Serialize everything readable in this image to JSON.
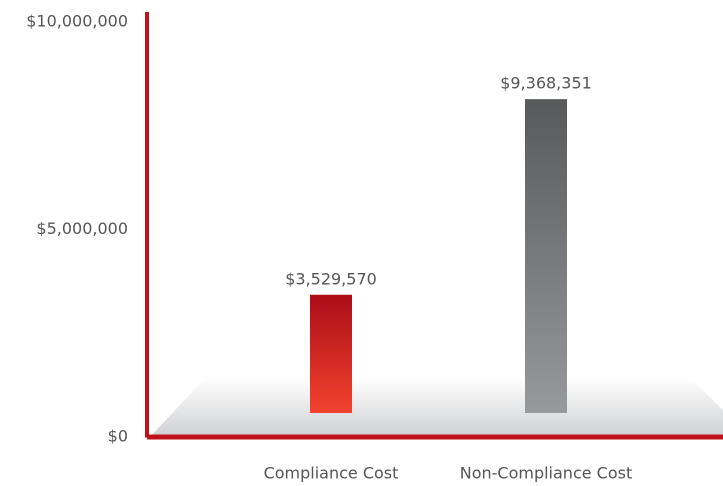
{
  "chart_data": {
    "type": "bar",
    "categories": [
      "Compliance Cost",
      "Non-Compliance Cost"
    ],
    "values": [
      3529570,
      9368351
    ],
    "value_labels": [
      "$3,529,570",
      "$9,368,351"
    ],
    "colors": [
      [
        "#ab0d17",
        "#f2432f"
      ],
      [
        "#58595b",
        "#98999c"
      ]
    ],
    "axis_color": "#c0111b",
    "ylim": [
      0,
      10000000
    ],
    "yticks": [
      {
        "value": 0,
        "label": "$0"
      },
      {
        "value": 5000000,
        "label": "$5,000,000"
      },
      {
        "value": 10000000,
        "label": "$10,000,000"
      }
    ]
  }
}
